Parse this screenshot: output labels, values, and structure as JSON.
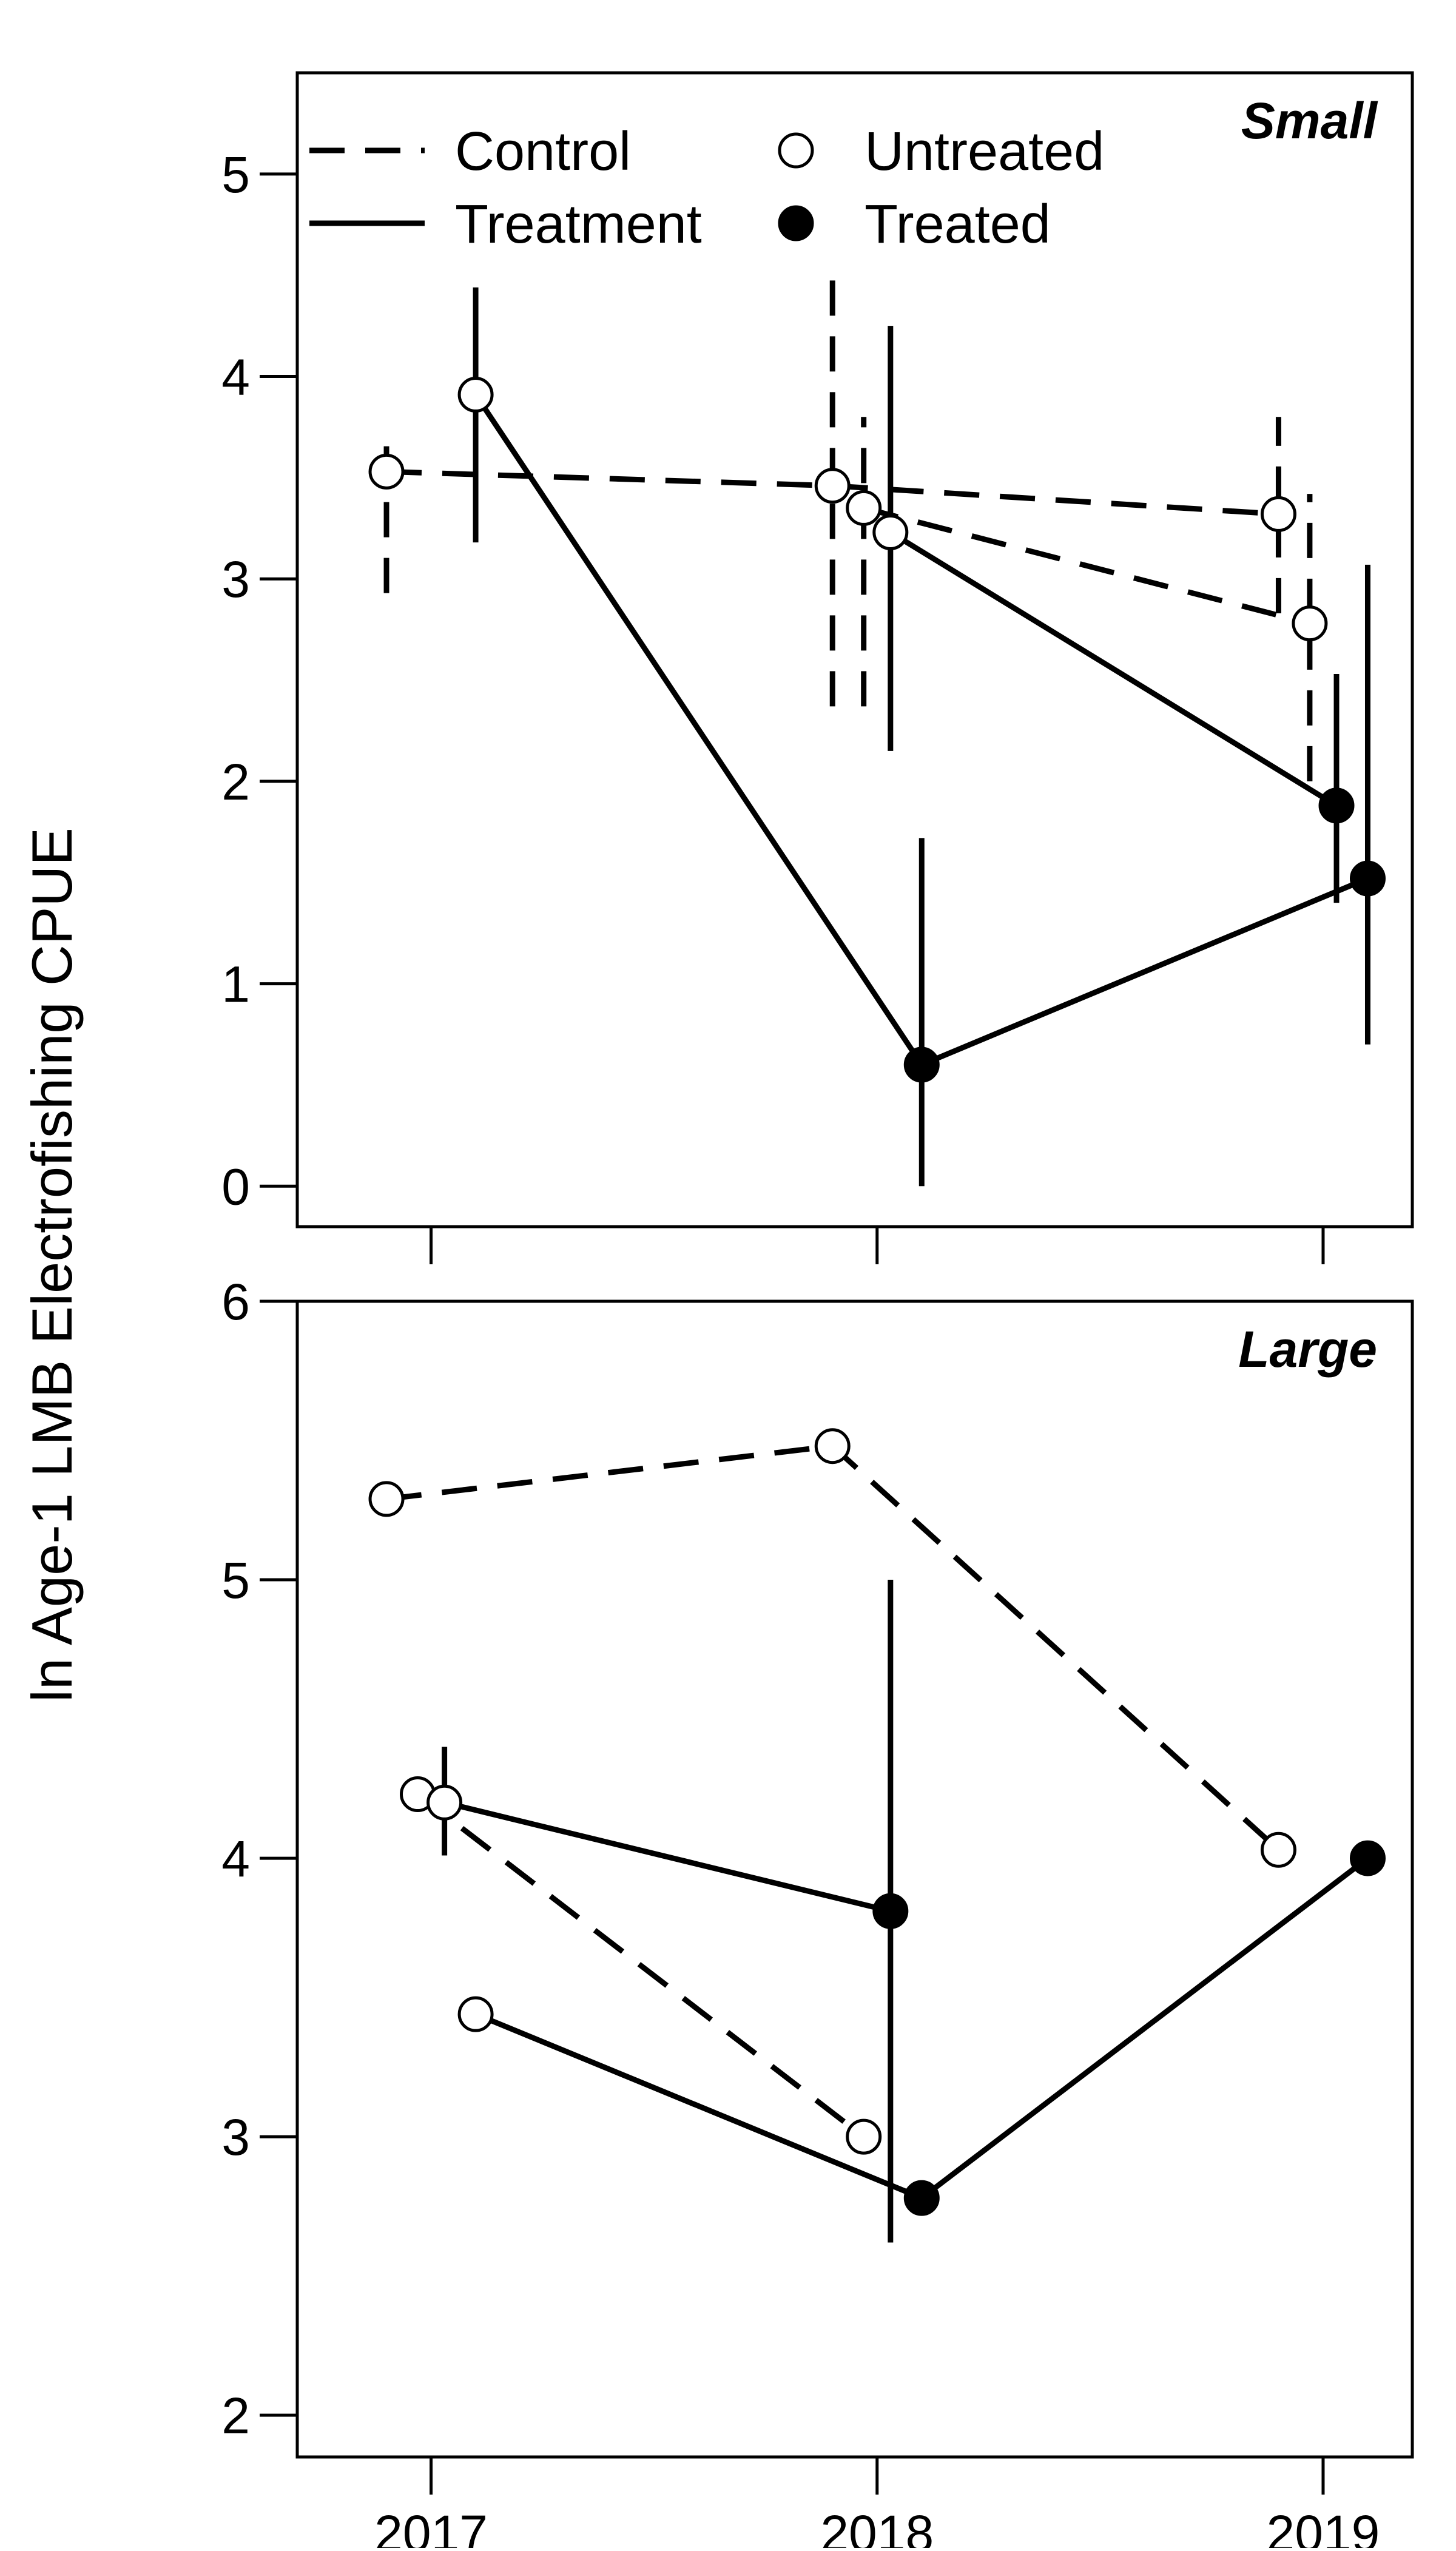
{
  "chart_data": {
    "type": "line",
    "ylabel": "ln Age-1 LMB Electrofishing CPUE",
    "x_ticks": [
      "2017",
      "2018",
      "2019"
    ],
    "legend": {
      "placement": "top-left",
      "lines": [
        {
          "label": "Control",
          "style": "dashed"
        },
        {
          "label": "Treatment",
          "style": "solid"
        }
      ],
      "markers": [
        {
          "label": "Untreated",
          "fill": "white"
        },
        {
          "label": "Treated",
          "fill": "black"
        }
      ]
    },
    "colors": {
      "ink": "#000000",
      "open_marker": "#ffffff"
    },
    "panels": [
      {
        "label": "Small",
        "ylim": [
          -0.2,
          5.5
        ],
        "y_ticks": [
          0,
          1,
          2,
          3,
          4,
          5
        ],
        "series": [
          {
            "group": "Control",
            "style": "dashed",
            "points": [
              {
                "x": 2016.9,
                "y": 3.53,
                "lo": 2.93,
                "hi": 3.72,
                "treated": false
              },
              {
                "x": 2017.9,
                "y": 3.46,
                "lo": 2.37,
                "hi": 4.55,
                "treated": false
              },
              {
                "x": 2018.9,
                "y": 3.32,
                "lo": 2.83,
                "hi": 3.8,
                "treated": false
              }
            ]
          },
          {
            "group": "Control",
            "style": "dashed",
            "points": [
              {
                "x": 2017.97,
                "y": 3.35,
                "lo": 2.37,
                "hi": 3.8,
                "treated": false
              },
              {
                "x": 2018.97,
                "y": 2.78,
                "lo": 2.0,
                "hi": 3.42,
                "treated": false
              }
            ]
          },
          {
            "group": "Treatment",
            "style": "solid",
            "points": [
              {
                "x": 2018.03,
                "y": 3.23,
                "lo": 2.15,
                "hi": 4.25,
                "treated": false
              },
              {
                "x": 2019.03,
                "y": 1.88,
                "lo": 1.4,
                "hi": 2.53,
                "treated": true
              }
            ]
          },
          {
            "group": "Treatment",
            "style": "solid",
            "points": [
              {
                "x": 2017.1,
                "y": 3.91,
                "lo": 3.18,
                "hi": 4.44,
                "treated": false
              },
              {
                "x": 2018.1,
                "y": 0.6,
                "lo": 0.0,
                "hi": 1.72,
                "treated": true
              },
              {
                "x": 2019.1,
                "y": 1.52,
                "lo": 0.7,
                "hi": 3.07,
                "treated": true
              }
            ]
          }
        ]
      },
      {
        "label": "Large",
        "ylim": [
          1.85,
          6.0
        ],
        "y_ticks": [
          2,
          3,
          4,
          5,
          6
        ],
        "series": [
          {
            "group": "Control",
            "style": "dashed",
            "points": [
              {
                "x": 2016.9,
                "y": 5.29,
                "treated": false
              },
              {
                "x": 2017.9,
                "y": 5.48,
                "treated": false
              },
              {
                "x": 2018.9,
                "y": 4.03,
                "treated": false
              }
            ]
          },
          {
            "group": "Control",
            "style": "dashed",
            "points": [
              {
                "x": 2016.97,
                "y": 4.23,
                "treated": false
              },
              {
                "x": 2017.97,
                "y": 3.0,
                "treated": false
              }
            ]
          },
          {
            "group": "Treatment",
            "style": "solid",
            "points": [
              {
                "x": 2017.03,
                "y": 4.2,
                "lo": 4.01,
                "hi": 4.4,
                "treated": false
              },
              {
                "x": 2018.03,
                "y": 3.81,
                "lo": 2.62,
                "hi": 5.0,
                "treated": true
              }
            ]
          },
          {
            "group": "Treatment",
            "style": "solid",
            "points": [
              {
                "x": 2017.1,
                "y": 3.44,
                "treated": false
              },
              {
                "x": 2018.1,
                "y": 2.78,
                "treated": true
              },
              {
                "x": 2019.1,
                "y": 4.0,
                "treated": true
              }
            ]
          }
        ]
      }
    ]
  }
}
